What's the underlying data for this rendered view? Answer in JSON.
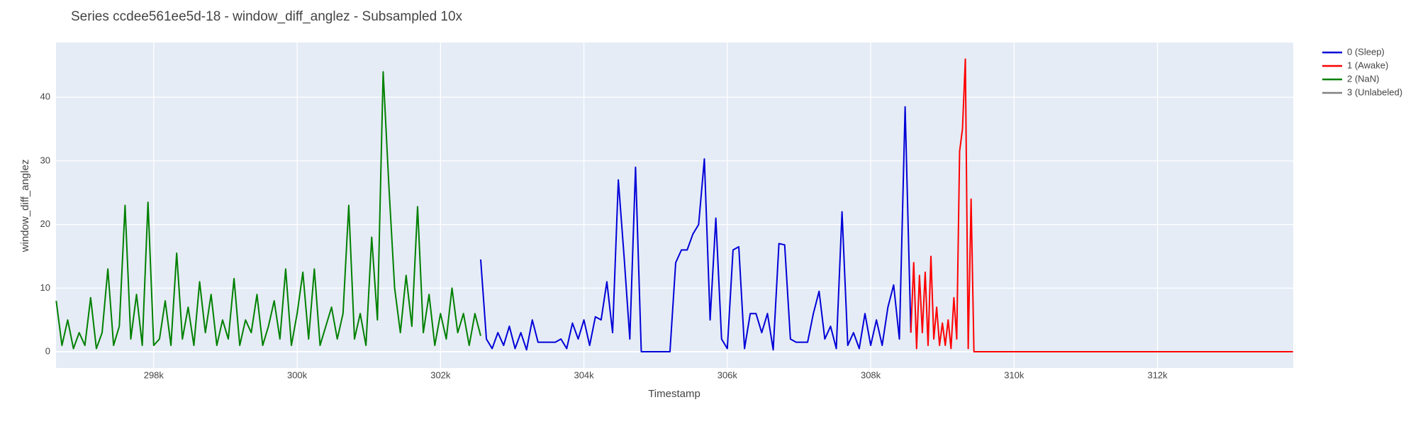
{
  "chart_data": {
    "type": "line",
    "title": "Series ccdee561ee5d-18 - window_diff_anglez - Subsampled 10x",
    "x_label": "Timestamp",
    "y_label": "window_diff_anglez",
    "xlim": [
      296637,
      313893
    ],
    "ylim": [
      -2.56,
      48.6
    ],
    "xticks": [
      {
        "value": 298000,
        "label": "298k"
      },
      {
        "value": 300000,
        "label": "300k"
      },
      {
        "value": 302000,
        "label": "302k"
      },
      {
        "value": 304000,
        "label": "304k"
      },
      {
        "value": 306000,
        "label": "306k"
      },
      {
        "value": 308000,
        "label": "308k"
      },
      {
        "value": 310000,
        "label": "310k"
      },
      {
        "value": 312000,
        "label": "312k"
      }
    ],
    "yticks": [
      0,
      10,
      20,
      30,
      40
    ],
    "grid": true,
    "legend": "right",
    "series": [
      {
        "name": "0 (Sleep)",
        "color": "#0000d8",
        "x": [
          302560,
          302640,
          302720,
          302800,
          302880,
          302960,
          303040,
          303120,
          303200,
          303280,
          303360,
          303440,
          303520,
          303600,
          303680,
          303760,
          303840,
          303920,
          304000,
          304080,
          304160,
          304240,
          304320,
          304400,
          304480,
          304560,
          304640,
          304720,
          304800,
          304880,
          304960,
          305040,
          305120,
          305200,
          305280,
          305360,
          305440,
          305520,
          305600,
          305680,
          305760,
          305840,
          305920,
          306000,
          306080,
          306160,
          306240,
          306320,
          306400,
          306480,
          306560,
          306640,
          306720,
          306800,
          306880,
          306960,
          307040,
          307120,
          307200,
          307280,
          307360,
          307440,
          307520,
          307600,
          307680,
          307760,
          307840,
          307920,
          308000,
          308080,
          308160,
          308240,
          308320,
          308400,
          308480,
          308560
        ],
        "values": [
          14.5,
          2,
          0.5,
          3,
          1,
          4,
          0.5,
          3,
          0.3,
          5,
          1.5,
          1.5,
          1.5,
          1.5,
          2,
          0.5,
          4.5,
          2,
          5,
          1,
          5.5,
          5,
          11,
          3,
          27,
          15,
          2,
          29,
          0,
          0,
          0,
          0,
          0,
          0,
          14,
          16,
          16,
          18.5,
          20,
          30.3,
          5,
          21,
          2,
          0.5,
          16,
          16.5,
          0.5,
          6,
          6,
          3,
          6,
          0.3,
          17,
          16.8,
          2,
          1.5,
          1.5,
          1.5,
          6,
          9.5,
          2,
          4,
          0.5,
          22,
          1,
          3,
          0.5,
          6,
          1,
          5,
          1,
          7,
          10.5,
          2,
          38.5,
          3
        ]
      },
      {
        "name": "1 (Awake)",
        "color": "#ff0000",
        "x": [
          308560,
          308600,
          308640,
          308680,
          308720,
          308760,
          308800,
          308840,
          308880,
          308920,
          308960,
          309000,
          309040,
          309080,
          309120,
          309160,
          309200,
          309240,
          309280,
          309320,
          309360,
          309400,
          309440,
          313890
        ],
        "values": [
          3,
          14,
          0.5,
          12,
          3,
          12.5,
          1,
          15,
          2,
          7,
          1,
          4.5,
          1,
          5,
          0.5,
          8.5,
          2,
          31.5,
          35,
          46,
          0.5,
          24,
          0,
          0
        ]
      },
      {
        "name": "2 (NaN)",
        "color": "#008000",
        "x": [
          296640,
          296720,
          296800,
          296880,
          296960,
          297040,
          297120,
          297200,
          297280,
          297360,
          297440,
          297520,
          297600,
          297680,
          297760,
          297840,
          297920,
          298000,
          298080,
          298160,
          298240,
          298320,
          298400,
          298480,
          298560,
          298640,
          298720,
          298800,
          298880,
          298960,
          299040,
          299120,
          299200,
          299280,
          299360,
          299440,
          299520,
          299600,
          299680,
          299760,
          299840,
          299920,
          300000,
          300080,
          300160,
          300240,
          300320,
          300400,
          300480,
          300560,
          300640,
          300720,
          300800,
          300880,
          300960,
          301040,
          301120,
          301200,
          301280,
          301360,
          301440,
          301520,
          301600,
          301680,
          301760,
          301840,
          301920,
          302000,
          302080,
          302160,
          302240,
          302320,
          302400,
          302480,
          302560
        ],
        "values": [
          8,
          1,
          5,
          0.5,
          3,
          1,
          8.5,
          0.5,
          3,
          13,
          1,
          4,
          23,
          2,
          9,
          1,
          23.5,
          1,
          2,
          8,
          1,
          15.5,
          2,
          7,
          1,
          11,
          3,
          9,
          1,
          5,
          2,
          11.5,
          1,
          5,
          3,
          9,
          1,
          4,
          8,
          2,
          13,
          1,
          6,
          12.5,
          2,
          13,
          1,
          4,
          7,
          2,
          6,
          23,
          2,
          6,
          1,
          18,
          5,
          44,
          26,
          10,
          3,
          12,
          4,
          22.8,
          3,
          9,
          1,
          6,
          2,
          10,
          3,
          6,
          1,
          6,
          2.5
        ]
      },
      {
        "name": "3 (Unlabeled)",
        "color": "#808080",
        "x": [],
        "values": []
      }
    ]
  }
}
